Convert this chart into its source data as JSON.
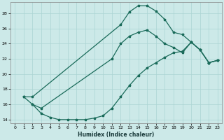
{
  "xlabel": "Humidex (Indice chaleur)",
  "bg_color": "#cce9e8",
  "grid_color": "#aad4d3",
  "line_color": "#1a6b5a",
  "xlim": [
    -0.5,
    23.5
  ],
  "ylim": [
    13.5,
    29.5
  ],
  "xticks": [
    0,
    1,
    2,
    3,
    4,
    5,
    6,
    7,
    8,
    9,
    10,
    11,
    12,
    13,
    14,
    15,
    16,
    17,
    18,
    19,
    20,
    21,
    22,
    23
  ],
  "yticks": [
    14,
    16,
    18,
    20,
    22,
    24,
    26,
    28
  ],
  "curve1_x": [
    1,
    2,
    12,
    13,
    14,
    15,
    16,
    17,
    18,
    19,
    20,
    21,
    22,
    23
  ],
  "curve1_y": [
    17.0,
    17.0,
    26.5,
    28.2,
    29.0,
    29.0,
    28.3,
    27.2,
    25.5,
    25.2,
    24.2,
    23.2,
    21.5,
    21.8
  ],
  "curve2_x": [
    1,
    2,
    3,
    11,
    12,
    13,
    14,
    15,
    16,
    17,
    18,
    19,
    20,
    21,
    22,
    23
  ],
  "curve2_y": [
    17.0,
    16.0,
    15.5,
    22.0,
    24.0,
    25.0,
    25.5,
    25.8,
    25.0,
    24.0,
    23.5,
    22.8,
    24.2,
    23.2,
    21.5,
    21.8
  ],
  "curve3_x": [
    2,
    3,
    4,
    5,
    6,
    7,
    8,
    9,
    10,
    11,
    12,
    13,
    14,
    15,
    16,
    17,
    18,
    19,
    20,
    21,
    22,
    23
  ],
  "curve3_y": [
    16.0,
    14.8,
    14.3,
    14.0,
    14.0,
    14.0,
    14.0,
    14.2,
    14.5,
    15.5,
    17.0,
    18.5,
    19.8,
    20.8,
    21.5,
    22.2,
    22.8,
    23.0,
    24.2,
    23.2,
    21.5,
    21.8
  ]
}
